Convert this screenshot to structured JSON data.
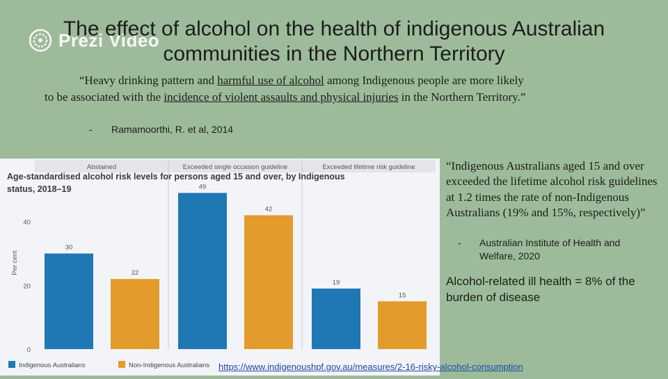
{
  "slide": {
    "title": "The effect of alcohol on the health of indigenous Australian communities in the Northern Territory",
    "logo_text": "Prezi Video"
  },
  "quote1": {
    "p1": "“Heavy drinking pattern and ",
    "u1": "harmful use of alcohol",
    "p2": " among Indigenous people are more likely to be associated with the ",
    "u2": "incidence of violent assaults and physical injuries",
    "p3": " in the Northern Territory.”",
    "citation_dash": "-",
    "citation": "Ramamoorthi, R. et al, 2014"
  },
  "quote2": {
    "text": "“Indigenous Australians aged 15 and over exceeded the lifetime alcohol risk guidelines at 1.2 times the rate of non-Indigenous Australians (19% and 15%, respectively)”",
    "citation_dash": "-",
    "citation": "Australian Institute of Health and Welfare, 2020"
  },
  "fact": "Alcohol-related ill health = 8% of the burden of disease",
  "source_link": "https://www.indigenoushpf.gov.au/measures/2-16-risky-alcohol-consumption",
  "colors": {
    "indigenous": "#1f77b4",
    "non_indigenous": "#e39b2c",
    "background": "#9dbb9a"
  },
  "chart_data": {
    "type": "bar",
    "title": "Age-standardised alcohol risk levels for persons aged 15 and over, by Indigenous status, 2018–19",
    "ylabel": "Per cent",
    "categories": [
      "Abstained",
      "Exceeded single occasion guideline",
      "Exceeded lifetime risk guideline"
    ],
    "series": [
      {
        "name": "Indigenous Australians",
        "values": [
          30,
          49,
          19
        ]
      },
      {
        "name": "Non-Indigenous Australians",
        "values": [
          22,
          42,
          15
        ]
      }
    ],
    "yticks": [
      0,
      20,
      40
    ],
    "ylim": [
      0,
      55
    ],
    "legend": "bottom-left"
  }
}
